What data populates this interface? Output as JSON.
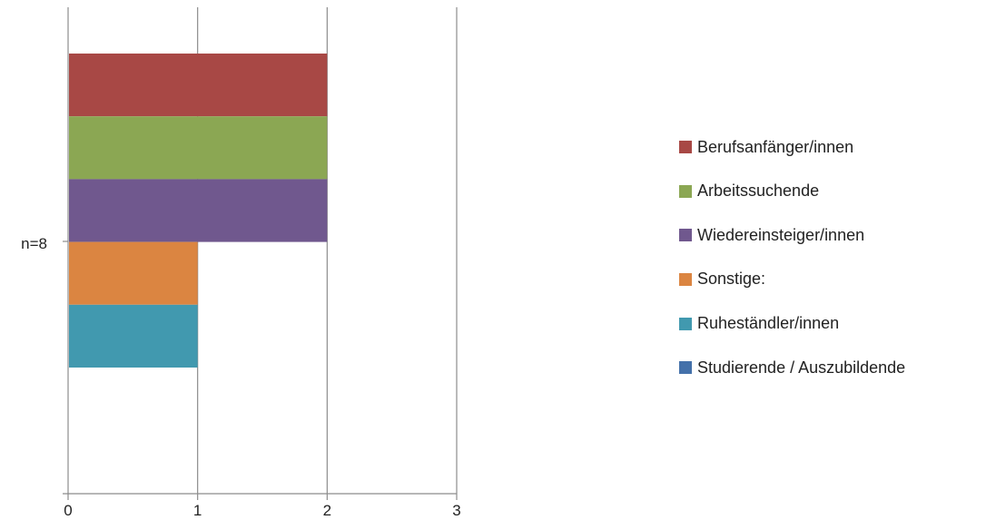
{
  "chart_data": {
    "type": "bar",
    "orientation": "horizontal",
    "stacking": "grouped",
    "title": "",
    "xlabel": "",
    "ylabel": "",
    "categories": [
      "n=8"
    ],
    "xlim": [
      0,
      3
    ],
    "x_ticks": [
      0,
      1,
      2,
      3
    ],
    "grid": true,
    "legend_position": "right",
    "series": [
      {
        "name": "Berufsanfänger/innen",
        "values": [
          2
        ],
        "color": "#A84845"
      },
      {
        "name": "Arbeitssuchende",
        "values": [
          2
        ],
        "color": "#8BA753"
      },
      {
        "name": "Wiedereinsteiger/innen",
        "values": [
          2
        ],
        "color": "#70588E"
      },
      {
        "name": "Sonstige:",
        "values": [
          1
        ],
        "color": "#DB8541"
      },
      {
        "name": "Ruheständler/innen",
        "values": [
          1
        ],
        "color": "#4199AF"
      },
      {
        "name": "Studierende / Auszubildende",
        "values": [
          0
        ],
        "color": "#4471AA"
      }
    ]
  }
}
